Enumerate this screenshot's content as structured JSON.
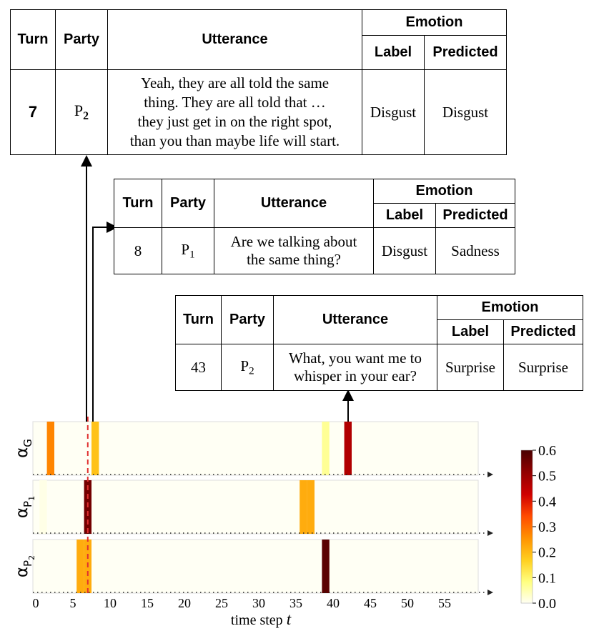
{
  "tables": [
    {
      "headers": {
        "turn": "Turn",
        "party": "Party",
        "utterance": "Utterance",
        "emotion": "Emotion",
        "label": "Label",
        "predicted": "Predicted"
      },
      "row": {
        "turn": "7",
        "party": "P",
        "party_sub": "2",
        "utterance": [
          "Yeah, they are all told the same",
          "thing.  They are all told that …",
          "they just get in on the right spot,",
          "than you than maybe life will start."
        ],
        "label": "Disgust",
        "predicted": "Disgust"
      }
    },
    {
      "headers": {
        "turn": "Turn",
        "party": "Party",
        "utterance": "Utterance",
        "emotion": "Emotion",
        "label": "Label",
        "predicted": "Predicted"
      },
      "row": {
        "turn": "8",
        "party": "P",
        "party_sub": "1",
        "utterance": [
          "Are we talking about",
          "the same thing?"
        ],
        "label": "Disgust",
        "predicted": "Sadness"
      }
    },
    {
      "headers": {
        "turn": "Turn",
        "party": "Party",
        "utterance": "Utterance",
        "emotion": "Emotion",
        "label": "Label",
        "predicted": "Predicted"
      },
      "row": {
        "turn": "43",
        "party": "P",
        "party_sub": "2",
        "utterance": [
          "What, you want me to",
          "whisper in your ear?"
        ],
        "label": "Surprise",
        "predicted": "Surprise"
      }
    }
  ],
  "chart_data": {
    "type": "heatmap",
    "xlabel": "time step",
    "xlabel_var": "t",
    "xlim": [
      0,
      60
    ],
    "xticks": [
      0,
      5,
      10,
      15,
      20,
      25,
      30,
      35,
      40,
      45,
      50,
      55
    ],
    "highlight_t": 7,
    "rows": [
      {
        "symbol": "α",
        "sub": "G",
        "sub_sub": "",
        "cells": [
          {
            "t": 2,
            "value": 0.27
          },
          {
            "t": 8,
            "value": 0.19
          },
          {
            "t": 39,
            "value": 0.07
          },
          {
            "t": 42,
            "value": 0.47
          }
        ]
      },
      {
        "symbol": "α",
        "sub": "P",
        "sub_sub": "1",
        "cells": [
          {
            "t": 1,
            "value": 0.01
          },
          {
            "t": 7,
            "value": 0.55
          },
          {
            "t": 36,
            "value": 0.22
          },
          {
            "t": 37,
            "value": 0.22
          }
        ]
      },
      {
        "symbol": "α",
        "sub": "P",
        "sub_sub": "2",
        "cells": [
          {
            "t": 6,
            "value": 0.22
          },
          {
            "t": 7,
            "value": 0.22
          },
          {
            "t": 39,
            "value": 0.58
          }
        ]
      }
    ],
    "colorbar": {
      "min": 0.0,
      "max": 0.6,
      "ticks": [
        "0.6",
        "0.5",
        "0.4",
        "0.3",
        "0.2",
        "0.1",
        "0.0"
      ]
    },
    "colormap": [
      "#fffff4",
      "#ffff80",
      "#ffd020",
      "#ff9000",
      "#ff4a00",
      "#d00000",
      "#900000",
      "#4a0000"
    ]
  }
}
